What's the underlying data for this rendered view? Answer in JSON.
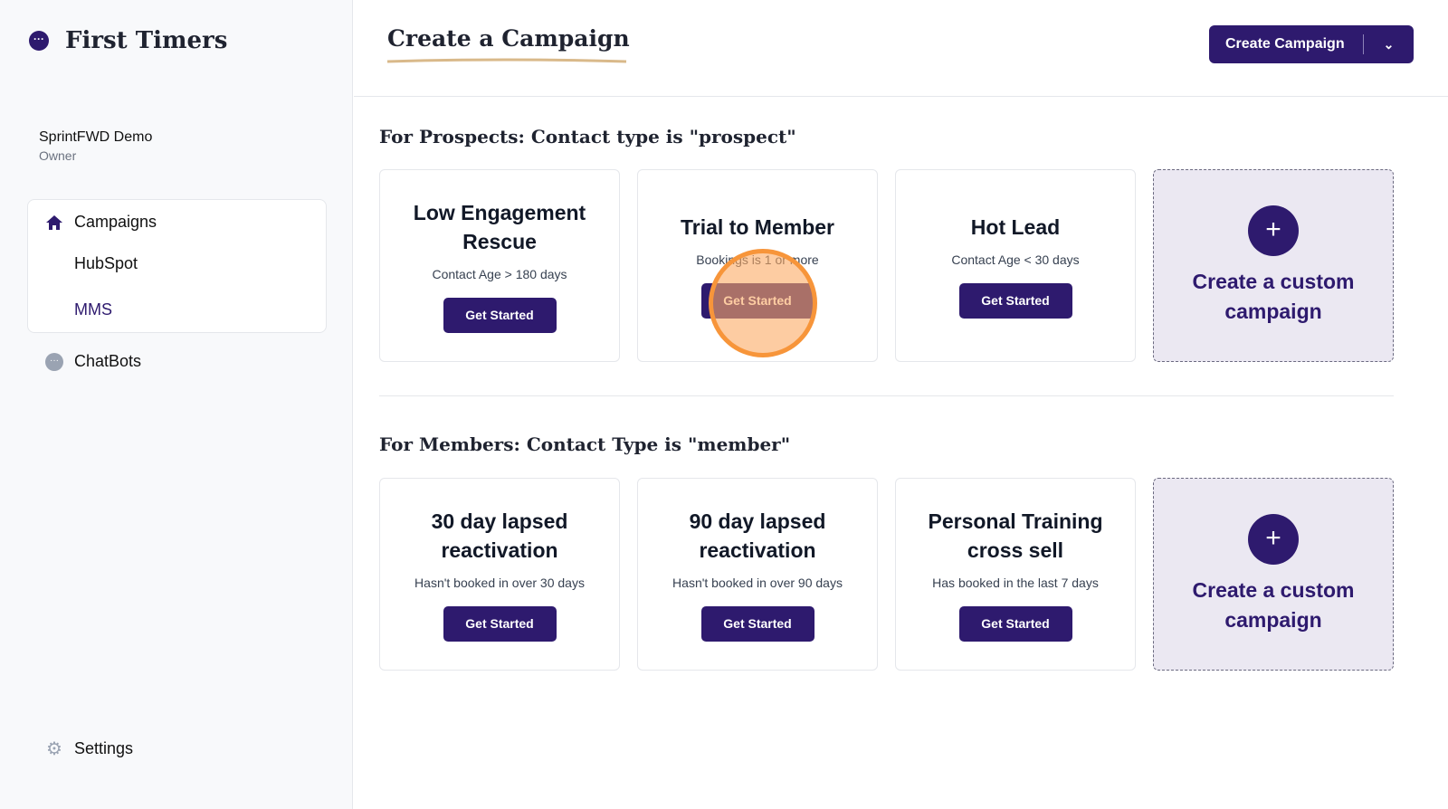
{
  "sidebar": {
    "app_name": "First Timers",
    "org_name": "SprintFWD Demo",
    "org_role": "Owner",
    "nav": {
      "campaigns": "Campaigns",
      "hubspot": "HubSpot",
      "mms": "MMS",
      "chatbots": "ChatBots",
      "settings": "Settings"
    }
  },
  "header": {
    "title": "Create a Campaign",
    "create_button": "Create Campaign"
  },
  "prospects": {
    "title": "For Prospects: Contact type is \"prospect\"",
    "cards": [
      {
        "title": "Low Engagement Rescue",
        "subtitle": "Contact Age > 180 days",
        "button": "Get Started"
      },
      {
        "title": "Trial to Member",
        "subtitle": "Bookings is 1 or more",
        "button": "Get Started"
      },
      {
        "title": "Hot Lead",
        "subtitle": "Contact Age < 30 days",
        "button": "Get Started"
      }
    ],
    "custom": "Create a custom campaign"
  },
  "members": {
    "title": "For Members: Contact Type is \"member\"",
    "cards": [
      {
        "title": "30 day lapsed reactivation",
        "subtitle": "Hasn't booked in over 30 days",
        "button": "Get Started"
      },
      {
        "title": "90 day lapsed reactivation",
        "subtitle": "Hasn't booked in over 90 days",
        "button": "Get Started"
      },
      {
        "title": "Personal Training cross sell",
        "subtitle": "Has booked in the last 7 days",
        "button": "Get Started"
      }
    ],
    "custom": "Create a custom campaign"
  },
  "colors": {
    "brand": "#2e1a6e",
    "click_highlight": "#f7953a"
  }
}
